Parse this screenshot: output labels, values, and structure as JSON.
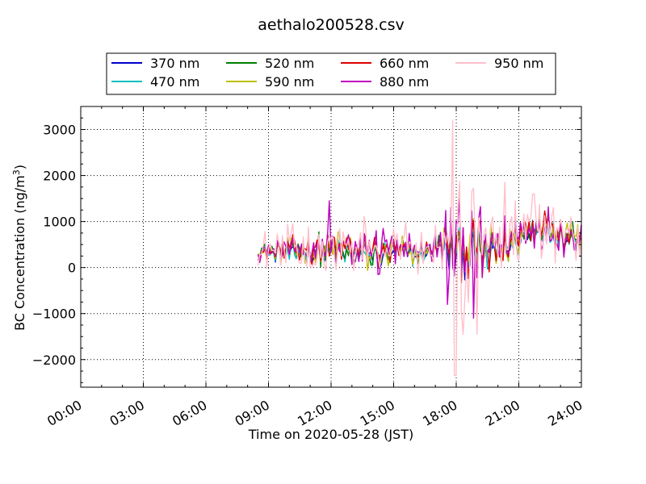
{
  "chart_data": {
    "type": "line",
    "title": "aethalo200528.csv",
    "xlabel": "Time on 2020-05-28 (JST)",
    "ylabel_main": "BC Concentration (ng/m",
    "ylabel_sup": "3",
    "ylabel_tail": ")",
    "x_range_hours": [
      0,
      24
    ],
    "ylim": [
      -2600,
      3500
    ],
    "x_ticks": [
      "00:00",
      "03:00",
      "06:00",
      "09:00",
      "12:00",
      "15:00",
      "18:00",
      "21:00",
      "24:00"
    ],
    "y_ticks": [
      "−2000",
      "−1000",
      "0",
      "1000",
      "2000",
      "3000"
    ],
    "y_tick_values": [
      -2000,
      -1000,
      0,
      1000,
      2000,
      3000
    ],
    "grid": true,
    "legend_placement": "top",
    "series": [
      {
        "name": "370 nm",
        "color": "#0000cc",
        "amp": 0.55,
        "seed": 11,
        "offset": 0.0
      },
      {
        "name": "470 nm",
        "color": "#00bfbf",
        "amp": 0.6,
        "seed": 23,
        "offset": 0.05
      },
      {
        "name": "520 nm",
        "color": "#007f00",
        "amp": 0.65,
        "seed": 37,
        "offset": 0.1
      },
      {
        "name": "590 nm",
        "color": "#bfbf00",
        "amp": 0.7,
        "seed": 41,
        "offset": 0.12
      },
      {
        "name": "660 nm",
        "color": "#dd0000",
        "amp": 0.75,
        "seed": 53,
        "offset": 0.15
      },
      {
        "name": "880 nm",
        "color": "#bf00bf",
        "amp": 1.0,
        "seed": 67,
        "offset": 0.2
      },
      {
        "name": "950 nm",
        "color": "#ffc0cb",
        "amp": 1.3,
        "seed": 79,
        "offset": 0.25
      }
    ],
    "profile": {
      "start_hour": 8.5,
      "end_hour": 24,
      "base": [
        [
          8.5,
          350
        ],
        [
          9.5,
          300
        ],
        [
          11.0,
          350
        ],
        [
          12.5,
          300
        ],
        [
          14.0,
          250
        ],
        [
          15.5,
          300
        ],
        [
          16.5,
          280
        ],
        [
          17.3,
          450
        ],
        [
          17.8,
          320
        ],
        [
          18.5,
          350
        ],
        [
          19.5,
          200
        ],
        [
          20.5,
          450
        ],
        [
          21.0,
          600
        ],
        [
          22.0,
          900
        ],
        [
          23.0,
          700
        ],
        [
          24.0,
          650
        ]
      ],
      "noise": [
        [
          8.5,
          250
        ],
        [
          12.0,
          500
        ],
        [
          15.0,
          450
        ],
        [
          17.0,
          300
        ],
        [
          17.6,
          700
        ],
        [
          18.2,
          900
        ],
        [
          19.5,
          700
        ],
        [
          21.0,
          500
        ],
        [
          24.0,
          450
        ]
      ],
      "spikes": [
        {
          "hour": 17.85,
          "value": 3200,
          "series": "950 nm"
        },
        {
          "hour": 17.95,
          "value": -2350,
          "series": "950 nm"
        },
        {
          "hour": 18.35,
          "value": -1450,
          "series": "950 nm"
        },
        {
          "hour": 19.0,
          "value": -1450,
          "series": "950 nm"
        },
        {
          "hour": 20.35,
          "value": 1850,
          "series": "950 nm"
        },
        {
          "hour": 21.7,
          "value": 1600,
          "series": "950 nm"
        },
        {
          "hour": 11.9,
          "value": 1450,
          "series": "880 nm"
        },
        {
          "hour": 17.6,
          "value": -800,
          "series": "880 nm"
        },
        {
          "hour": 18.85,
          "value": -1100,
          "series": "880 nm"
        }
      ]
    }
  }
}
